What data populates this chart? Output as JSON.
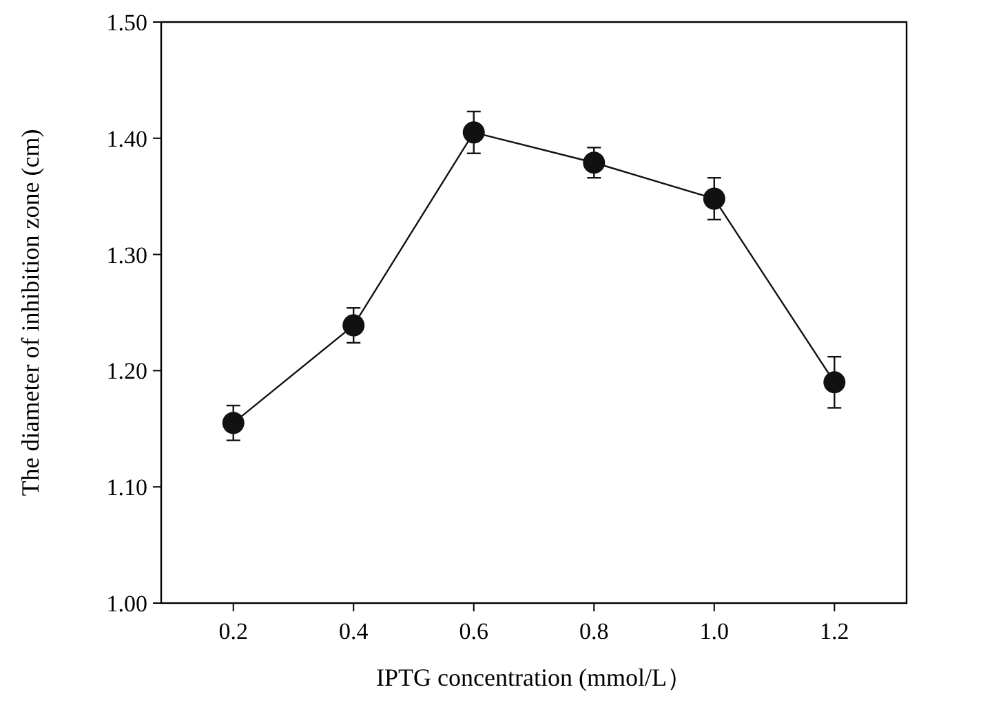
{
  "chart_data": {
    "type": "line",
    "xlabel": "IPTG concentration (mmol/L）",
    "ylabel": "The diameter of inhibition zone (cm)",
    "x": [
      0.2,
      0.4,
      0.6,
      0.8,
      1.0,
      1.2
    ],
    "series": [
      {
        "color": "#111111",
        "values": [
          1.155,
          1.239,
          1.405,
          1.379,
          1.348,
          1.19
        ],
        "errors": [
          0.015,
          0.015,
          0.018,
          0.013,
          0.018,
          0.022
        ]
      }
    ],
    "xlim": [
      0.08,
      1.32
    ],
    "xticks": [
      0.2,
      0.4,
      0.6,
      0.8,
      {
        "value": 1.0,
        "label": "1.0"
      },
      1.2
    ],
    "ylim": [
      1.0,
      1.5
    ],
    "yticks": [
      {
        "value": 1.0,
        "label": "1.00"
      },
      {
        "value": 1.1,
        "label": "1.10"
      },
      {
        "value": 1.2,
        "label": "1.20"
      },
      {
        "value": 1.3,
        "label": "1.30"
      },
      {
        "value": 1.4,
        "label": "1.40"
      },
      {
        "value": 1.5,
        "label": "1.50"
      }
    ],
    "marker": "circle",
    "line_style": "solid"
  }
}
